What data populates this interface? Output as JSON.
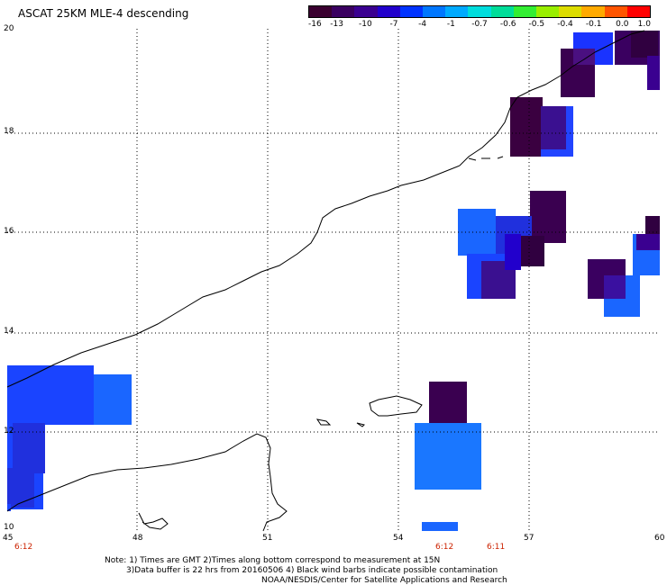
{
  "title": "ASCAT 25KM MLE-4 descending",
  "colorbar": {
    "colors": [
      "#3a0030",
      "#3a0060",
      "#3a0090",
      "#2200cc",
      "#0033ff",
      "#0077ff",
      "#00aaff",
      "#00dddd",
      "#00dd99",
      "#33ee33",
      "#99ee00",
      "#dddd00",
      "#ffaa00",
      "#ff5500",
      "#ff0000"
    ],
    "labels": [
      "-16",
      "-13",
      "-10",
      "-7",
      "-4",
      "-1",
      "-0.7",
      "-0.6",
      "-0.5",
      "-0.4",
      "-0.1",
      "0.0",
      "1.0"
    ]
  },
  "axes": {
    "x_ticks": [
      "45",
      "48",
      "51",
      "54",
      "57",
      "60"
    ],
    "y_ticks": [
      "20",
      "18",
      "16",
      "14",
      "12",
      "10"
    ]
  },
  "times": {
    "left": "6:12",
    "mid1": "6:12",
    "mid2": "6:11"
  },
  "notes": {
    "line1": "Note: 1) Times are GMT 2)Times along bottom correspond to measurement at 15N",
    "line2": "3)Data buffer is 22 hrs from 20160506 4) Black wind barbs indicate possible contamination",
    "line3": "NOAA/NESDIS/Center for Satellite Applications and Research"
  }
}
